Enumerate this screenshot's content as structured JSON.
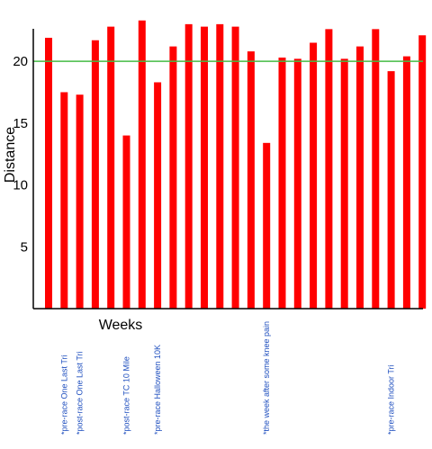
{
  "chart_data": {
    "type": "bar",
    "xlabel": "Weeks",
    "ylabel": "Distance",
    "yticks": [
      5,
      10,
      15,
      20
    ],
    "ylim": [
      0,
      22.8
    ],
    "reference_line": {
      "value": 20,
      "color": "#44bb44"
    },
    "bar_color": "#ff0000",
    "annotation_color": "#1f4fbf",
    "values": [
      21.9,
      17.5,
      17.3,
      21.7,
      22.8,
      14.0,
      23.3,
      18.3,
      21.2,
      23.0,
      22.8,
      23.0,
      22.8,
      20.8,
      13.4,
      20.3,
      20.2,
      21.5,
      22.6,
      20.2,
      21.2,
      22.6,
      19.2,
      20.4,
      22.1
    ],
    "annotations": [
      {
        "bar": 1,
        "text": "*pre-race One Last Tri"
      },
      {
        "bar": 2,
        "text": "*post-race One Last Tri"
      },
      {
        "bar": 5,
        "text": "*post-race TC 10 Mile"
      },
      {
        "bar": 7,
        "text": "*pre-race Halloween 10K"
      },
      {
        "bar": 14,
        "text": "*the week after some knee pain"
      },
      {
        "bar": 22,
        "text": "*pre-race Indoor Tri"
      }
    ]
  }
}
